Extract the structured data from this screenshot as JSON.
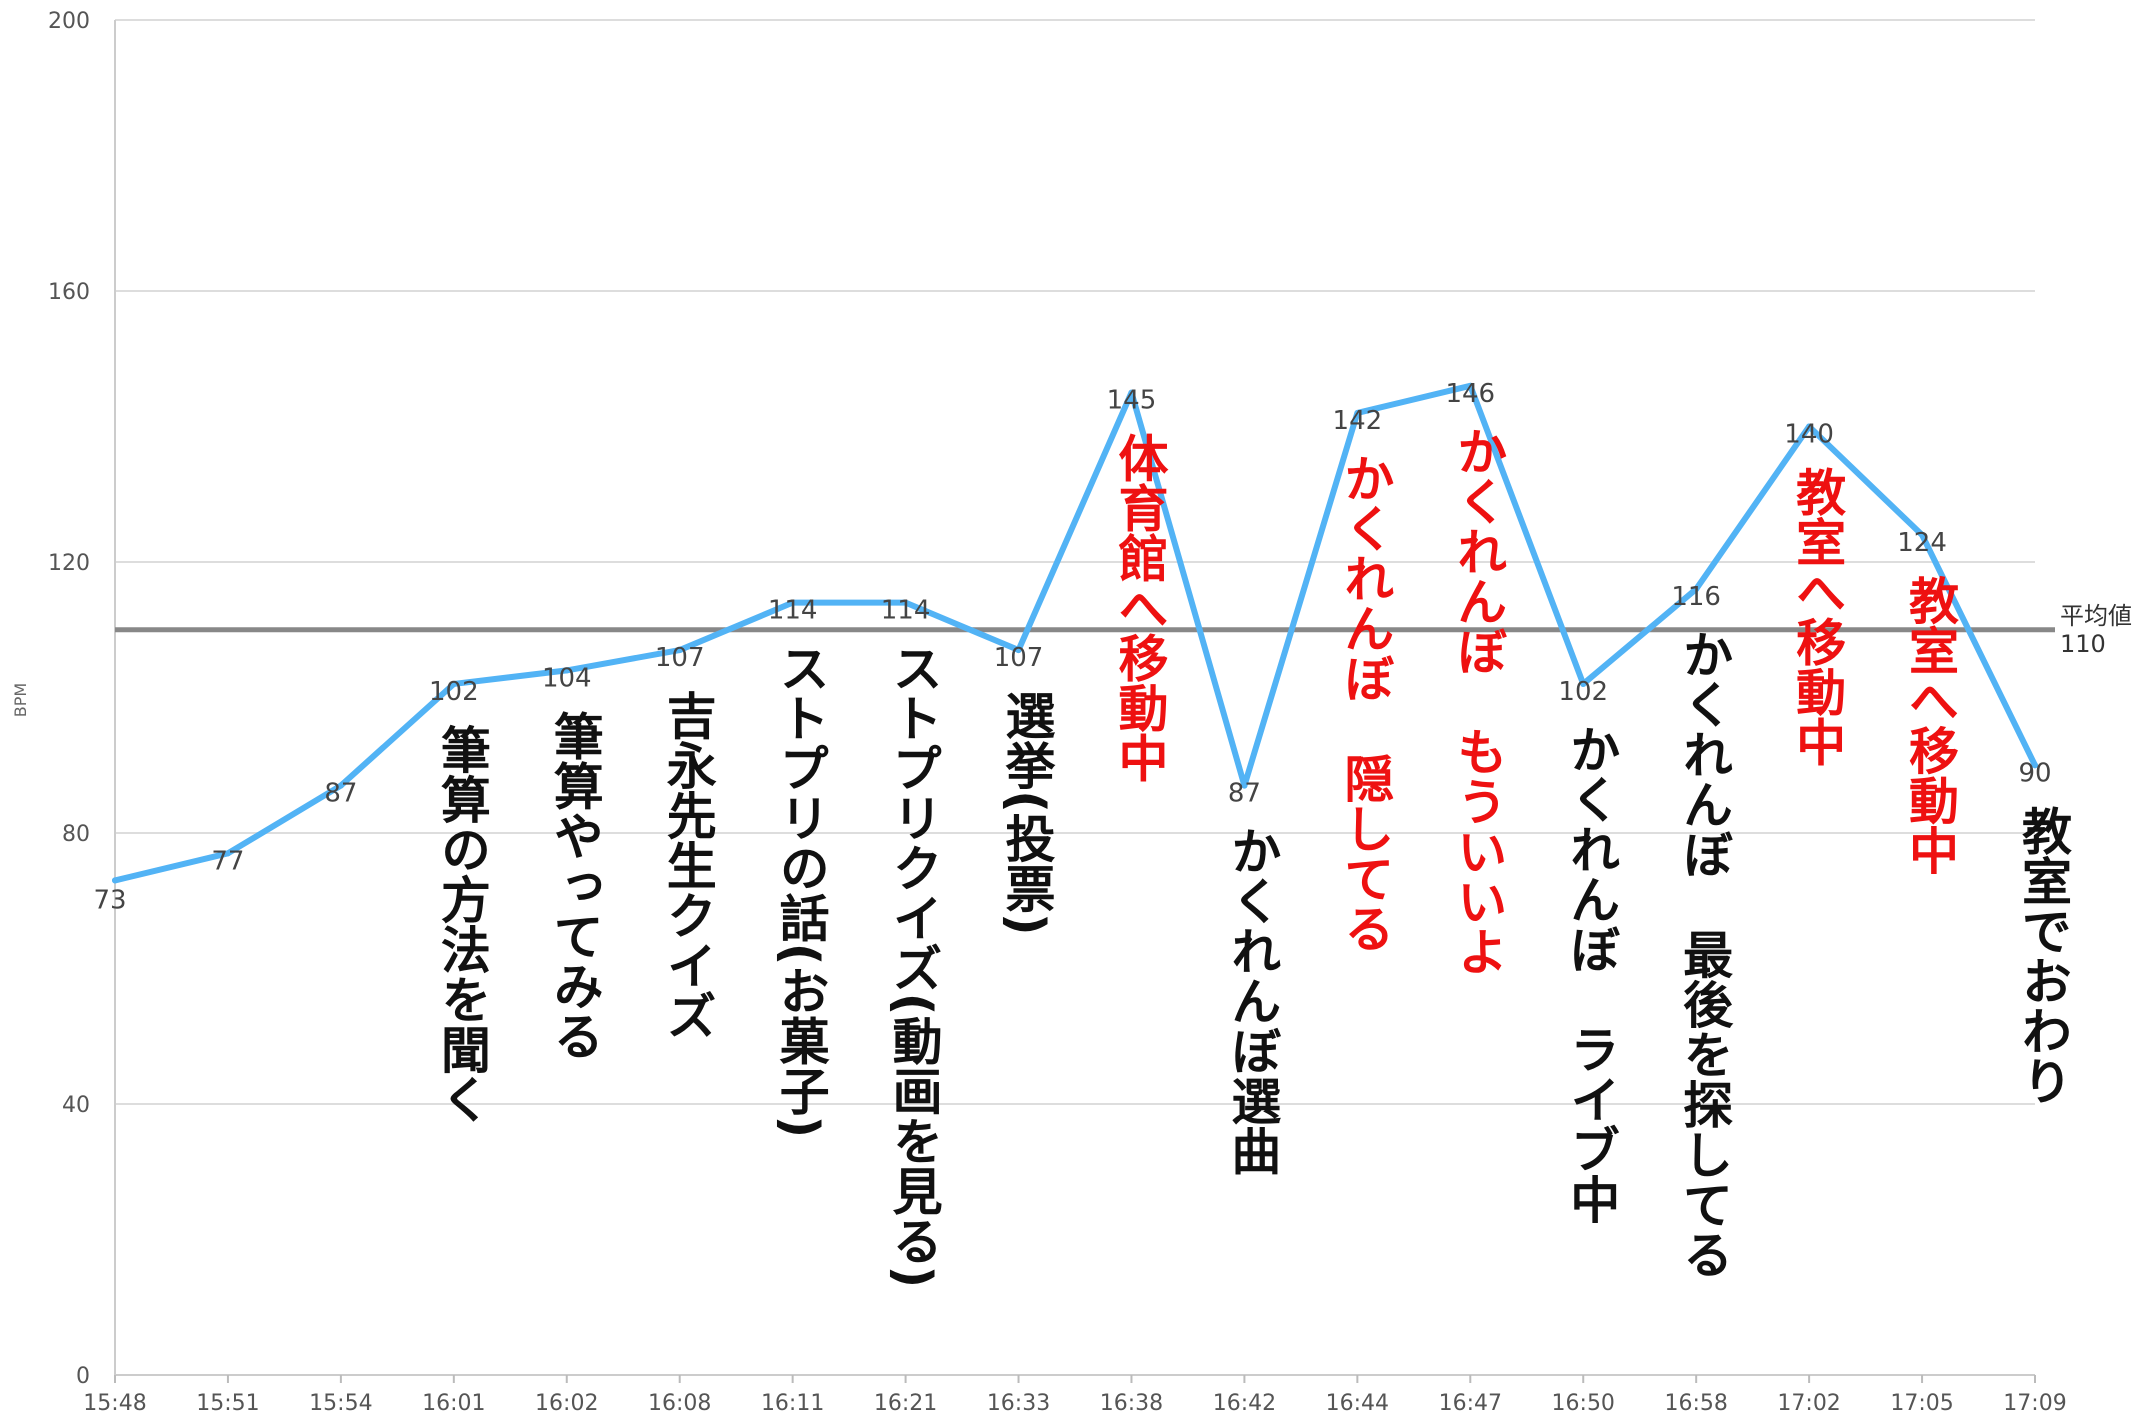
{
  "chart_data": {
    "type": "line",
    "x": [
      "15:48",
      "15:51",
      "15:54",
      "16:01",
      "16:02",
      "16:08",
      "16:11",
      "16:21",
      "16:33",
      "16:38",
      "16:42",
      "16:44",
      "16:47",
      "16:50",
      "16:58",
      "17:02",
      "17:05",
      "17:09"
    ],
    "values": [
      73,
      77,
      87,
      102,
      104,
      107,
      114,
      114,
      107,
      145,
      87,
      142,
      146,
      102,
      116,
      140,
      124,
      90
    ],
    "data_labels": [
      "73",
      "77",
      "87",
      "102",
      "104",
      "107",
      "114",
      "114",
      "107",
      "145",
      "87",
      "142",
      "146",
      "102",
      "116",
      "140",
      "124",
      "90"
    ],
    "ylim": [
      0,
      200
    ],
    "yticks": [
      0,
      40,
      80,
      120,
      160,
      200
    ],
    "ylabel": "BPM",
    "grid": true,
    "series_color": "#52b3f5",
    "reference_line": {
      "value": 110,
      "label": "平均値",
      "value_label": "110",
      "color": "#888888"
    },
    "annotations": [
      {
        "index": 3,
        "text": "筆算の方法を聞く",
        "color": "#111111"
      },
      {
        "index": 4,
        "text": "筆算やってみる",
        "color": "#111111"
      },
      {
        "index": 5,
        "text": "吉永先生クイズ",
        "color": "#111111"
      },
      {
        "index": 6,
        "text": "ストプリの話(お菓子)",
        "color": "#111111"
      },
      {
        "index": 7,
        "text": "ストプリクイズ(動画を見る)",
        "color": "#111111"
      },
      {
        "index": 8,
        "text": "選挙(投票)",
        "color": "#111111"
      },
      {
        "index": 9,
        "text": "体育館へ移動中",
        "color": "#ee1111"
      },
      {
        "index": 10,
        "text": "かくれんぼ選曲",
        "color": "#111111"
      },
      {
        "index": 11,
        "text": "かくれんぼ　隠してる",
        "color": "#ee1111"
      },
      {
        "index": 12,
        "text": "かくれんぼ　もういいよ",
        "color": "#ee1111"
      },
      {
        "index": 13,
        "text": "かくれんぼ　ライブ中",
        "color": "#111111"
      },
      {
        "index": 14,
        "text": "かくれんぼ　最後を探してる",
        "color": "#111111"
      },
      {
        "index": 15,
        "text": "教室へ移動中",
        "color": "#ee1111"
      },
      {
        "index": 16,
        "text": "教室へ移動中",
        "color": "#ee1111"
      },
      {
        "index": 17,
        "text": "教室でおわり",
        "color": "#111111"
      }
    ]
  }
}
